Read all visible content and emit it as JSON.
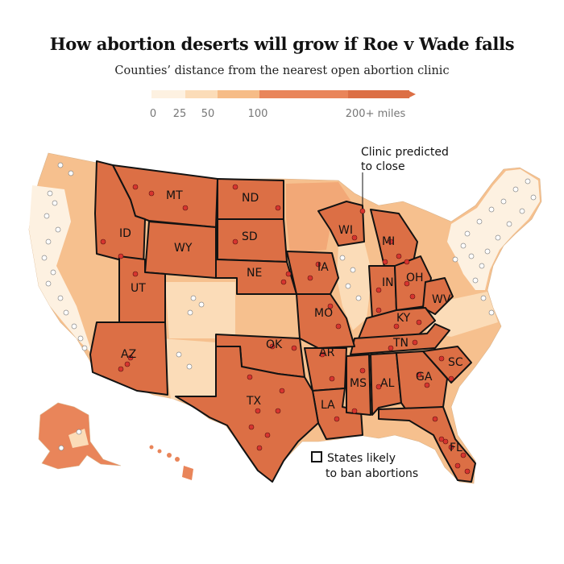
{
  "title": "How abortion deserts will grow if Roe v Wade falls",
  "subtitle": "Counties’ distance from the nearest open abortion clinic",
  "legend": {
    "ticks": [
      "0",
      "25",
      "50",
      "100",
      "200+ miles"
    ],
    "colors": [
      "#fdf1e1",
      "#fbdcb8",
      "#f6bc87",
      "#e9855a",
      "#dc6f45"
    ]
  },
  "annotations": {
    "clinic_close_line1": "Clinic predicted",
    "clinic_close_line2": "to close",
    "key_line1": "States likely",
    "key_line2": "to ban abortions"
  },
  "state_labels": [
    "ID",
    "MT",
    "ND",
    "SD",
    "WY",
    "NE",
    "UT",
    "AZ",
    "IA",
    "WI",
    "MI",
    "IN",
    "OH",
    "MO",
    "KY",
    "WV",
    "OK",
    "AR",
    "TN",
    "SC",
    "GA",
    "AL",
    "MS",
    "LA",
    "TX",
    "FL"
  ],
  "colors": {
    "ban_state_fill": "#dc6f45",
    "near": "#fdf1e1",
    "mid": "#f6c08e",
    "far": "#e9855a",
    "open_clinic": "#ffffff",
    "closing_clinic": "#d7342f"
  }
}
